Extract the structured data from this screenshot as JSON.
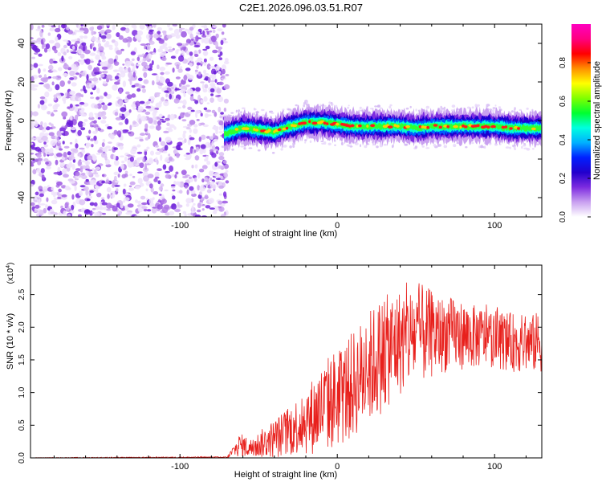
{
  "title": "C2E1.2026.096.03.51.R07",
  "chart_data": [
    {
      "type": "heatmap",
      "xlabel": "Height of straight line (km)",
      "ylabel": "Frequency (Hz)",
      "xlim": [
        -195,
        130
      ],
      "ylim": [
        -50,
        50
      ],
      "xticks": [
        -100,
        0,
        100
      ],
      "yticks": [
        -40,
        -20,
        0,
        20,
        40
      ],
      "noise_region_x": [
        -195,
        -72
      ],
      "signal_region_x": [
        -72,
        130
      ],
      "signal_frequency_trace": {
        "x": [
          -72,
          -60,
          -50,
          -40,
          -30,
          -20,
          -10,
          0,
          10,
          20,
          30,
          40,
          50,
          60,
          70,
          80,
          90,
          100,
          110,
          120,
          130
        ],
        "y": [
          -7,
          -4,
          -5,
          -6,
          -3,
          -1,
          -1,
          -2,
          -3,
          -3,
          -3,
          -3,
          -4,
          -3,
          -3,
          -3,
          -3,
          -3,
          -4,
          -4,
          -4
        ]
      },
      "colorbar": {
        "label": "Normalized spectral amplitude",
        "range": [
          0,
          1
        ],
        "ticks": [
          "0.0",
          "0.2",
          "0.4",
          "0.6",
          "0.8"
        ],
        "tick_values": [
          0,
          0.2,
          0.4,
          0.6,
          0.8
        ],
        "colormap": [
          "#ffffff",
          "#c9a0f0",
          "#7d2ce0",
          "#2200cc",
          "#0020ff",
          "#00b0ff",
          "#00ffe0",
          "#00ff30",
          "#80ff00",
          "#ffff00",
          "#ff9000",
          "#ff0000",
          "#ff0080",
          "#ff00c0"
        ]
      }
    },
    {
      "type": "line",
      "xlabel": "Height of straight line (km)",
      "ylabel": "SNR (10 * v/v)",
      "multiplier": "(x10",
      "multiplier_exp": "4",
      "multiplier_close": ")",
      "xlim": [
        -195,
        130
      ],
      "ylim": [
        0,
        2.95
      ],
      "xticks": [
        -100,
        0,
        100
      ],
      "yticks": [
        "0.0",
        "0.5",
        "1.0",
        "1.5",
        "2.0",
        "2.5"
      ],
      "ytick_values": [
        0,
        0.5,
        1.0,
        1.5,
        2.0,
        2.5
      ],
      "color": "#e8201c",
      "envelope": {
        "x": [
          -195,
          -70,
          -62,
          -55,
          -45,
          -35,
          -25,
          -15,
          -5,
          5,
          15,
          25,
          35,
          45,
          55,
          65,
          75,
          85,
          95,
          105,
          115,
          125,
          130
        ],
        "mean": [
          0.0,
          0.01,
          0.2,
          0.15,
          0.25,
          0.35,
          0.5,
          0.65,
          0.85,
          1.0,
          1.25,
          1.5,
          1.7,
          1.85,
          1.9,
          1.88,
          1.9,
          1.85,
          1.85,
          1.8,
          1.75,
          1.75,
          1.8
        ],
        "amp": [
          0.005,
          0.01,
          0.18,
          0.15,
          0.25,
          0.35,
          0.45,
          0.6,
          0.75,
          0.8,
          0.85,
          0.9,
          0.85,
          0.8,
          0.75,
          0.6,
          0.55,
          0.5,
          0.45,
          0.45,
          0.45,
          0.45,
          0.5
        ]
      }
    }
  ]
}
